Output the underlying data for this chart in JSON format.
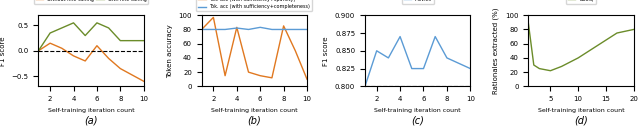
{
  "panel_a": {
    "title": "(a)",
    "xlabel": "Self-training iteration count",
    "ylabel": "F1 score",
    "x": [
      1,
      2,
      3,
      4,
      5,
      6,
      7,
      8,
      10
    ],
    "without_ft": [
      0.0,
      0.15,
      0.05,
      -0.1,
      -0.2,
      0.1,
      -0.15,
      -0.35,
      -0.6
    ],
    "with_ft": [
      0.0,
      0.35,
      0.45,
      0.55,
      0.3,
      0.55,
      0.45,
      0.2,
      0.2
    ],
    "color_without": "#e07820",
    "color_with": "#6b8c2a",
    "hline": 0.0,
    "xlim": [
      1,
      10
    ],
    "ylim": [
      -0.7,
      0.7
    ],
    "yticks": [
      -0.5,
      0.0,
      0.5
    ],
    "xticks": [
      2,
      4,
      6,
      8,
      10
    ]
  },
  "panel_b": {
    "title": "(b)",
    "xlabel": "Self-training iteration count",
    "ylabel": "Token accuracy",
    "x_sparsity": [
      1,
      2,
      3,
      4,
      5,
      6,
      7,
      8,
      9,
      10
    ],
    "sparsity": [
      80,
      97,
      15,
      83,
      20,
      15,
      12,
      85,
      50,
      10
    ],
    "x_completeness": [
      1,
      2,
      3,
      4,
      5,
      6,
      7,
      8,
      9,
      10
    ],
    "completeness": [
      80,
      80,
      80,
      82,
      80,
      83,
      80,
      80,
      80,
      80
    ],
    "color_sparsity": "#e07820",
    "color_completeness": "#5b9bd5",
    "xlim": [
      1,
      10
    ],
    "ylim": [
      0,
      100
    ],
    "yticks": [
      0,
      20,
      40,
      60,
      80,
      100
    ],
    "xticks": [
      2,
      4,
      6,
      8,
      10
    ]
  },
  "panel_c": {
    "title": "(c)",
    "xlabel": "Self-training iteration count",
    "ylabel": "F1 score",
    "x": [
      1,
      2,
      3,
      4,
      5,
      6,
      7,
      8,
      10
    ],
    "movies": [
      0.8,
      0.85,
      0.84,
      0.87,
      0.825,
      0.825,
      0.87,
      0.84,
      0.825
    ],
    "color_movies": "#5b9bd5",
    "hline": 0.8,
    "xlim": [
      1,
      10
    ],
    "ylim": [
      0.8,
      0.9
    ],
    "yticks": [
      0.8,
      0.825,
      0.85,
      0.875,
      0.9
    ],
    "xticks": [
      2,
      4,
      6,
      8,
      10
    ]
  },
  "panel_d": {
    "title": "(d)",
    "xlabel": "Self-training iteration count",
    "ylabel": "Rationales extracted (%)",
    "x": [
      1,
      2,
      3,
      5,
      7,
      10,
      13,
      15,
      17,
      20
    ],
    "boolq": [
      90,
      30,
      25,
      22,
      28,
      40,
      55,
      65,
      75,
      80
    ],
    "color_boolq": "#6b8c2a",
    "xlim": [
      1,
      20
    ],
    "ylim": [
      0,
      100
    ],
    "yticks": [
      0,
      20,
      40,
      60,
      80,
      100
    ],
    "xticks": [
      5,
      10,
      15,
      20
    ]
  }
}
